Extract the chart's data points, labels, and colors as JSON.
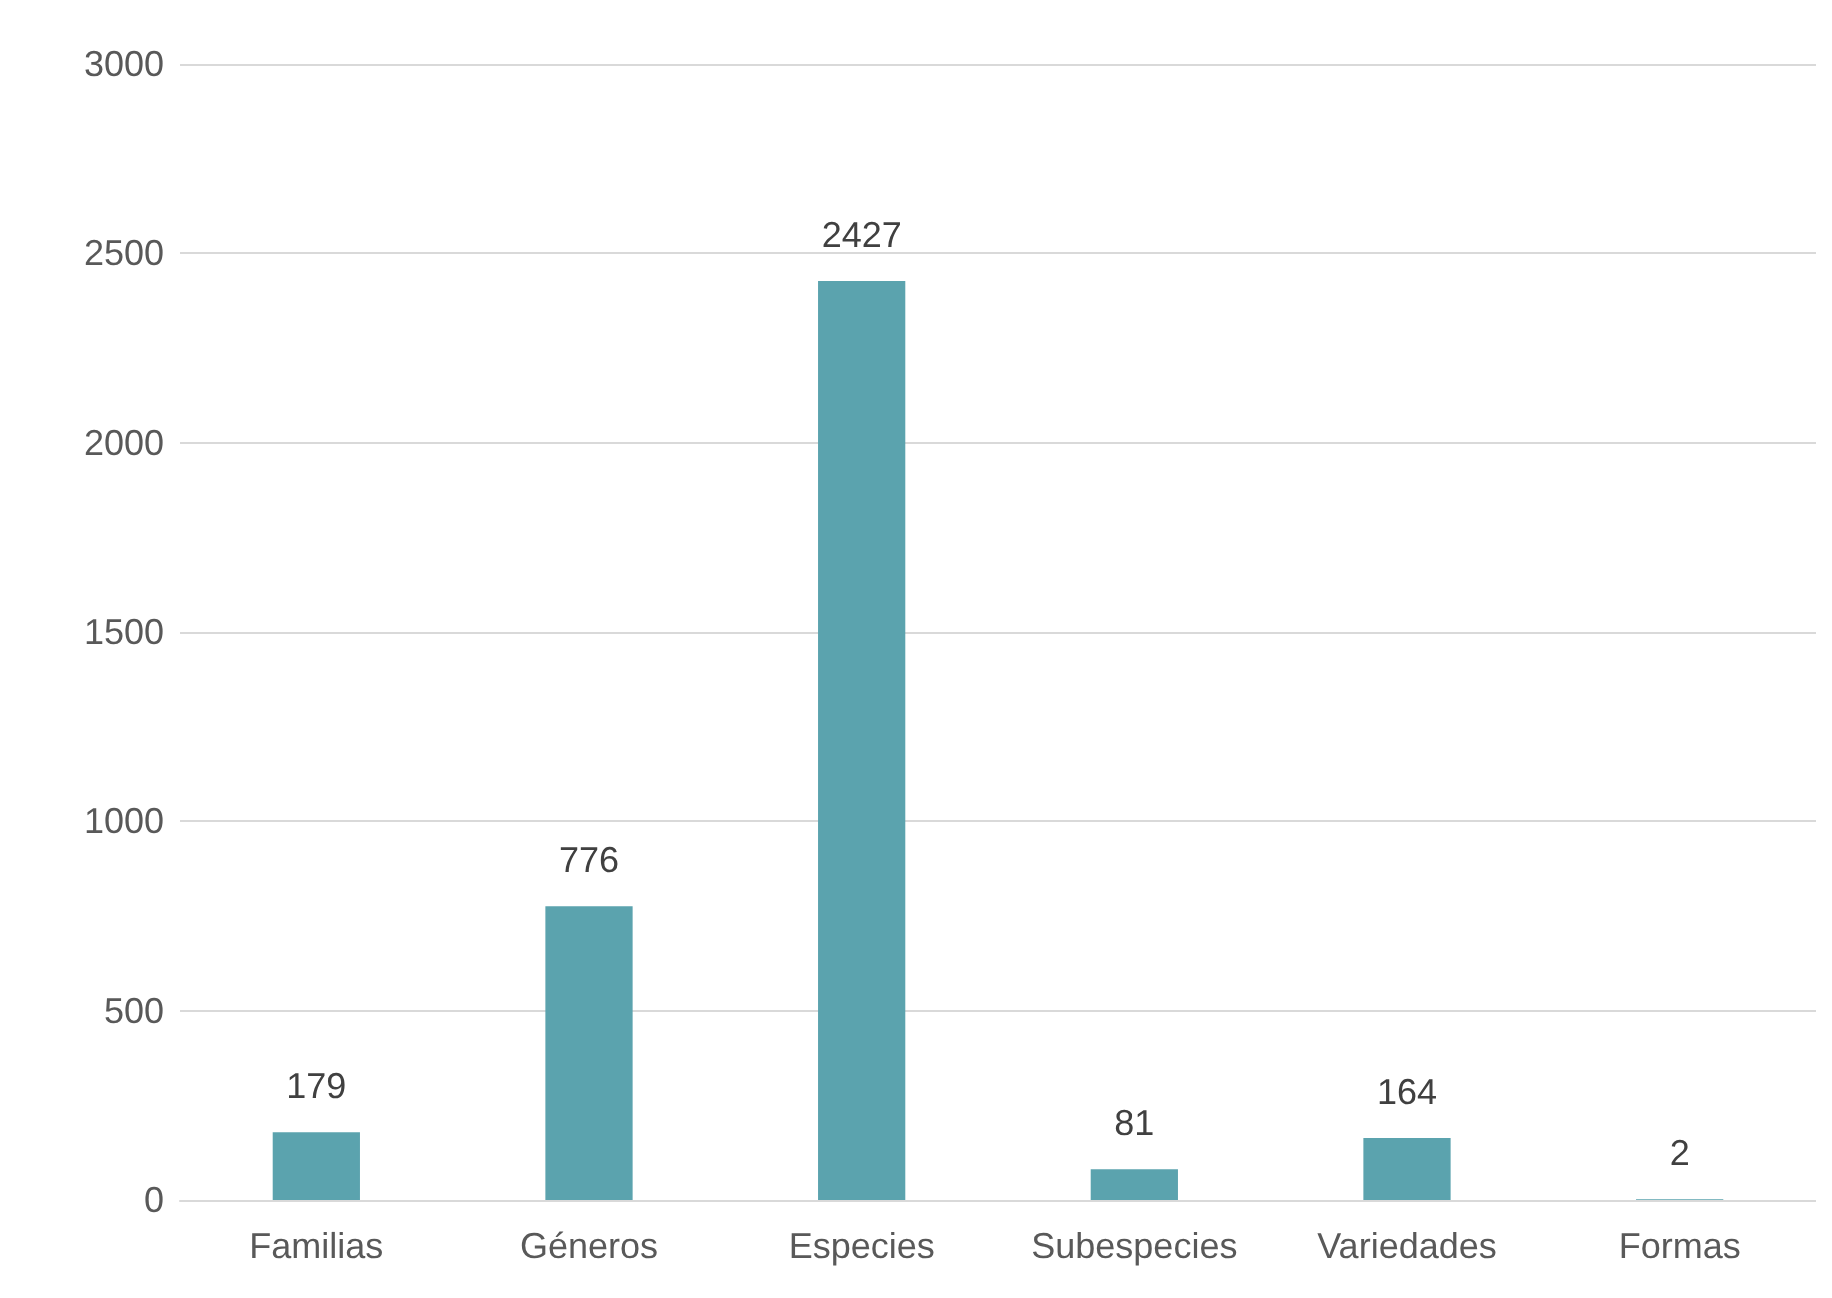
{
  "chart_data": {
    "type": "bar",
    "categories": [
      "Familias",
      "Géneros",
      "Especies",
      "Subespecies",
      "Variedades",
      "Formas"
    ],
    "values": [
      179,
      776,
      2427,
      81,
      164,
      2
    ],
    "color": "#5ba3ae",
    "ylim": [
      0,
      3000
    ],
    "yticks": [
      0,
      500,
      1000,
      1500,
      2000,
      2500,
      3000
    ],
    "grid": "y",
    "data_labels": true
  }
}
